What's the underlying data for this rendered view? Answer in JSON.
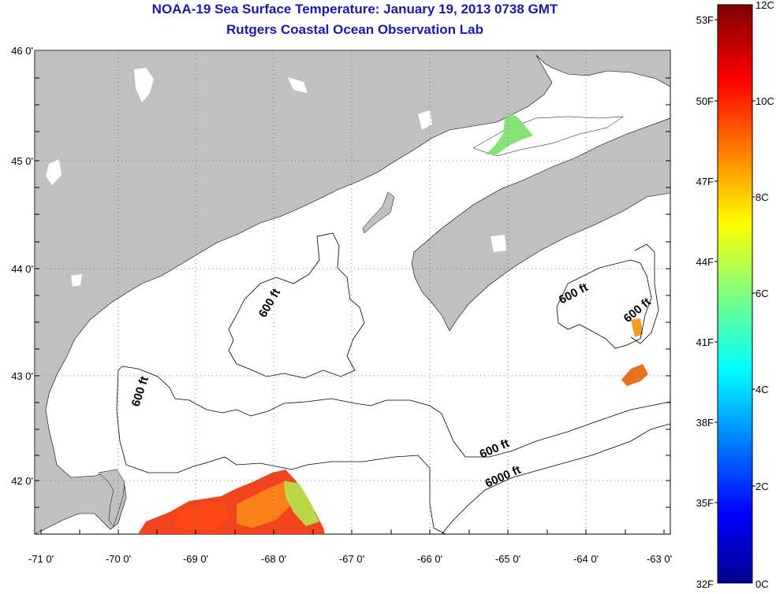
{
  "title": "NOAA-19 Sea Surface Temperature:  January 19, 2013 0738 GMT",
  "subtitle": "Rutgers Coastal Ocean Observation Lab",
  "lat_labels": [
    "46 0'",
    "45 0'",
    "44 0'",
    "43 0'",
    "42 0'"
  ],
  "lon_labels": [
    "-71 0'",
    "-70 0'",
    "-69 0'",
    "-68 0'",
    "-67 0'",
    "-66 0'",
    "-65 0'",
    "-64 0'",
    "-63 0'"
  ],
  "contour_labels": [
    "600 ft",
    "600 ft",
    "600 ft",
    "600 ft",
    "600 ft",
    "6000 ft"
  ],
  "colorbar": {
    "fahrenheit": [
      "53F",
      "50F",
      "47F",
      "44F",
      "41F",
      "38F",
      "35F",
      "32F"
    ],
    "celsius": [
      "12C",
      "10C",
      "8C",
      "6C",
      "4C",
      "2C",
      "0C"
    ]
  },
  "colors": {
    "land": "#c0c0c0",
    "title": "#1a1aa8",
    "water": "#ffffff"
  }
}
